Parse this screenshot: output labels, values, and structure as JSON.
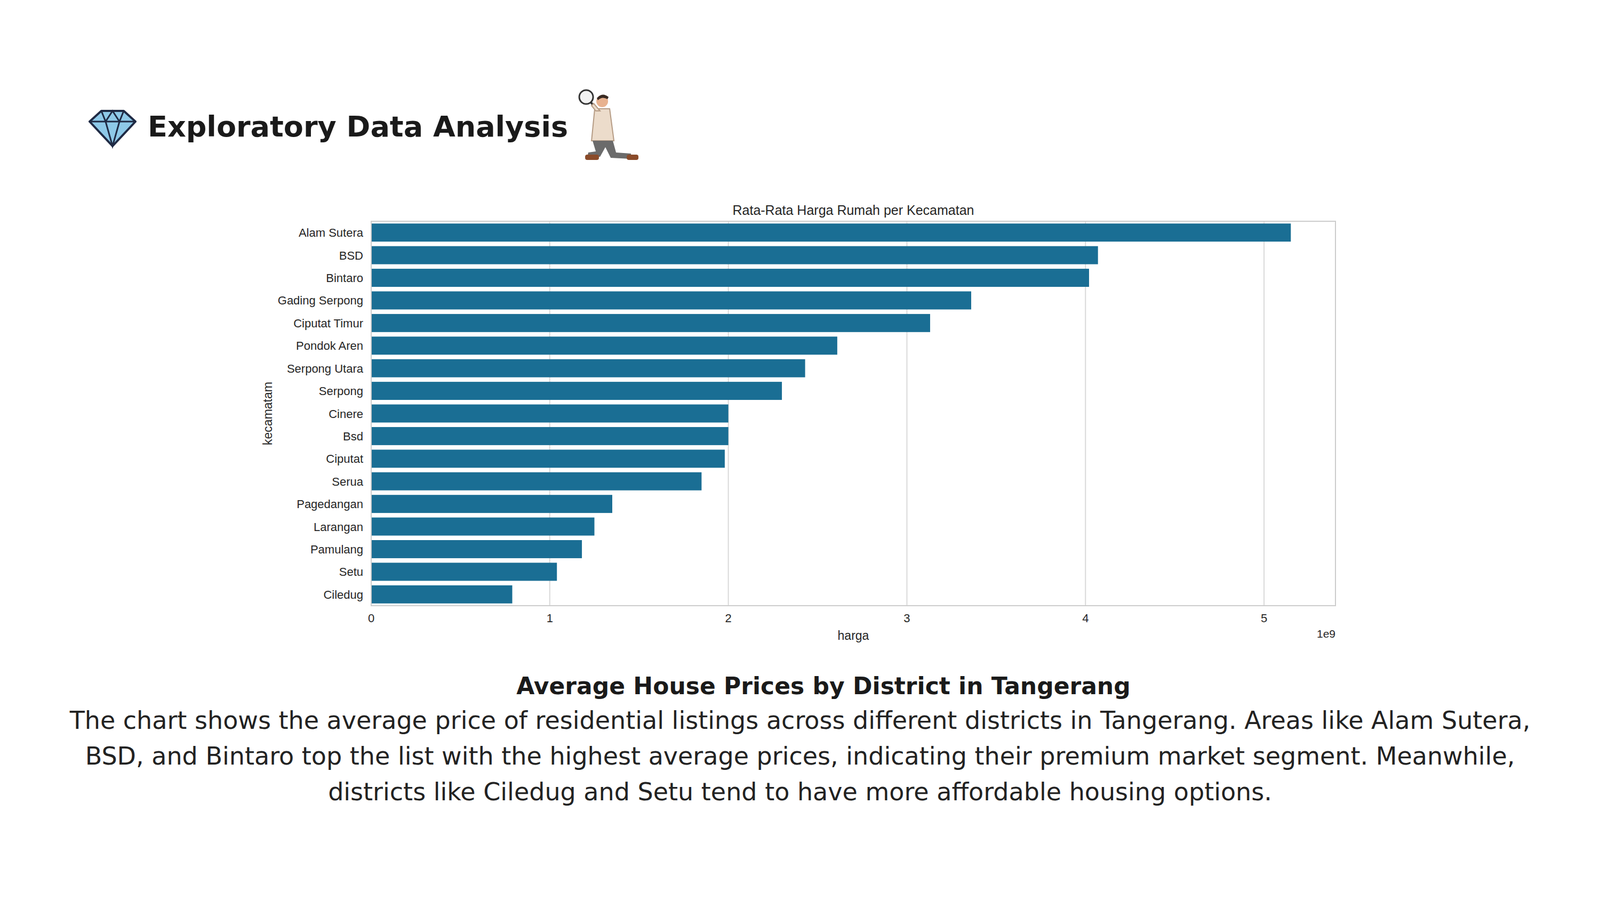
{
  "header": {
    "title": "Exploratory Data Analysis"
  },
  "chart_data": {
    "type": "bar",
    "orientation": "horizontal",
    "title": "Rata-Rata Harga Rumah per Kecamatan",
    "x_label": "harga",
    "y_label": "kecamatam",
    "annotations": [
      "1e9"
    ],
    "categories": [
      "Alam Sutera",
      "BSD",
      "Bintaro",
      "Gading Serpong",
      "Ciputat Timur",
      "Pondok Aren",
      "Serpong Utara",
      "Serpong",
      "Cinere",
      "Bsd",
      "Ciputat",
      "Serua",
      "Pagedangan",
      "Larangan",
      "Pamulang",
      "Setu",
      "Ciledug"
    ],
    "values": [
      5.15,
      4.07,
      4.02,
      3.36,
      3.13,
      2.61,
      2.43,
      2.3,
      2.0,
      2.0,
      1.98,
      1.85,
      1.35,
      1.25,
      1.18,
      1.04,
      0.79
    ],
    "color": "#1a6e94",
    "xlim": [
      0,
      5.4
    ],
    "xticks": [
      0,
      1,
      2,
      3,
      4,
      5
    ],
    "grid": true
  },
  "caption": {
    "title": "Average House Prices by District in Tangerang",
    "text": "The chart shows the average price of residential listings across different districts in Tangerang. Areas like Alam Sutera, BSD, and Bintaro top the list with the highest average prices, indicating their premium market segment. Meanwhile, districts like Ciledug and Setu tend to have more affordable housing options."
  }
}
